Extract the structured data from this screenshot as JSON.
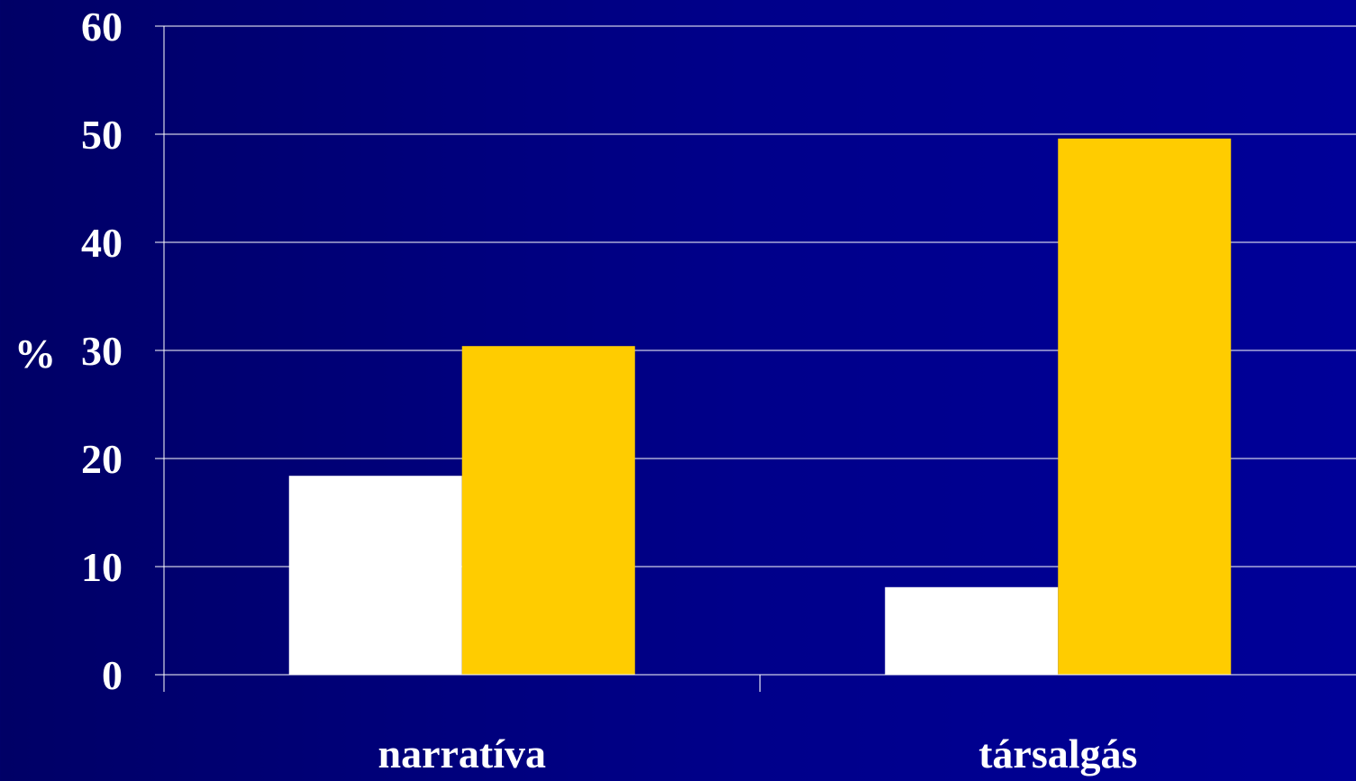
{
  "chart_data": {
    "type": "bar",
    "categories": [
      "narratíva",
      "társalgás"
    ],
    "series": [
      {
        "color": "#ffffff",
        "values": [
          18.4,
          8.1
        ]
      },
      {
        "color": "#ffcc00",
        "values": [
          30.4,
          49.6
        ]
      }
    ],
    "ylabel": "%",
    "xlabel": "",
    "title": "",
    "ylim": [
      0,
      60
    ],
    "yticks": [
      0,
      10,
      20,
      30,
      40,
      50,
      60
    ],
    "grid": true,
    "legend": "none"
  },
  "colors": {
    "background": "#000080",
    "axis": "#ffffff",
    "text": "#ffffff"
  }
}
